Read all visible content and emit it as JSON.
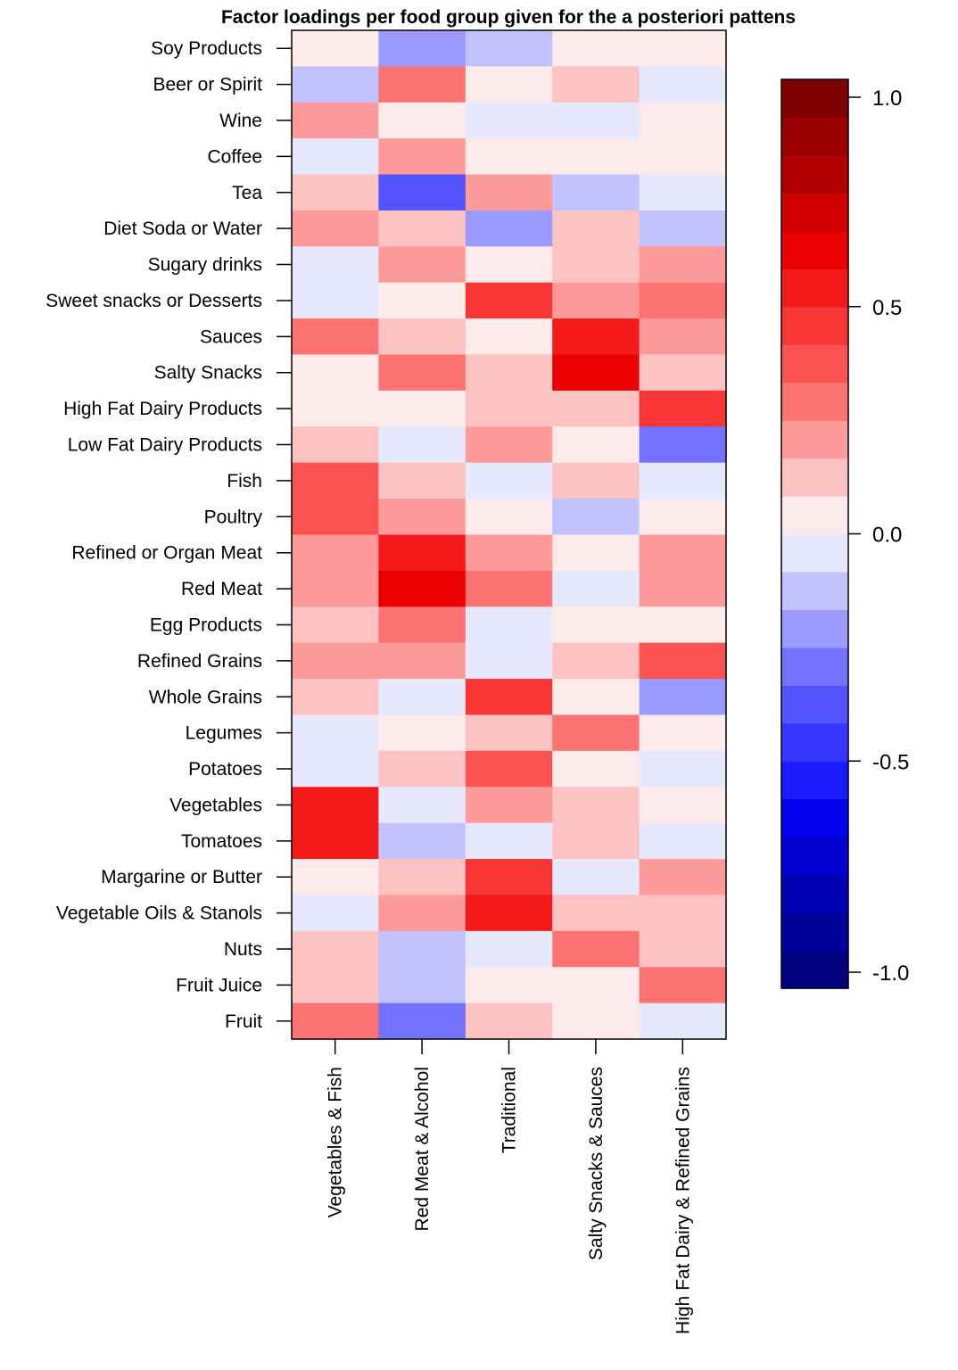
{
  "chart_data": {
    "type": "heatmap",
    "title": "Factor loadings per food group given for the a posteriori pattens",
    "rows": [
      "Soy Products",
      "Beer or Spirit",
      "Wine",
      "Coffee",
      "Tea",
      "Diet Soda or Water",
      "Sugary drinks",
      "Sweet snacks or Desserts",
      "Sauces",
      "Salty Snacks",
      "High Fat Dairy Products",
      "Low Fat Dairy Products",
      "Fish",
      "Poultry",
      "Refined or Organ Meat",
      "Red Meat",
      "Egg Products",
      "Refined Grains",
      "Whole Grains",
      "Legumes",
      "Potatoes",
      "Vegetables",
      "Tomatoes",
      "Margarine or Butter",
      "Vegetable Oils & Stanols",
      "Nuts",
      "Fruit Juice",
      "Fruit"
    ],
    "columns": [
      "Vegetables & Fish",
      "Red Meat & Alcohol",
      "Traditional",
      "Salty Snacks & Sauces",
      "High Fat Dairy & Refined Grains"
    ],
    "values": [
      [
        0.02,
        -0.2,
        -0.12,
        0.02,
        0.02
      ],
      [
        -0.12,
        0.3,
        0.02,
        0.12,
        -0.03
      ],
      [
        0.2,
        0.02,
        -0.03,
        -0.03,
        0.02
      ],
      [
        -0.03,
        0.2,
        0.02,
        0.02,
        0.02
      ],
      [
        0.12,
        -0.35,
        0.2,
        -0.12,
        -0.03
      ],
      [
        0.2,
        0.12,
        -0.2,
        0.12,
        -0.12
      ],
      [
        -0.03,
        0.2,
        0.02,
        0.12,
        0.2
      ],
      [
        -0.03,
        0.02,
        0.45,
        0.2,
        0.3
      ],
      [
        0.3,
        0.12,
        0.02,
        0.55,
        0.2
      ],
      [
        0.02,
        0.3,
        0.12,
        0.65,
        0.12
      ],
      [
        0.02,
        0.02,
        0.12,
        0.12,
        0.45
      ],
      [
        0.12,
        -0.03,
        0.2,
        0.02,
        -0.3
      ],
      [
        0.38,
        0.12,
        -0.03,
        0.12,
        -0.03
      ],
      [
        0.38,
        0.2,
        0.02,
        -0.12,
        0.02
      ],
      [
        0.2,
        0.55,
        0.2,
        0.02,
        0.2
      ],
      [
        0.2,
        0.65,
        0.3,
        -0.03,
        0.2
      ],
      [
        0.12,
        0.3,
        -0.03,
        0.02,
        0.02
      ],
      [
        0.2,
        0.2,
        -0.03,
        0.12,
        0.38
      ],
      [
        0.12,
        -0.03,
        0.45,
        0.02,
        -0.2
      ],
      [
        -0.03,
        0.02,
        0.12,
        0.3,
        0.02
      ],
      [
        -0.03,
        0.12,
        0.38,
        0.02,
        -0.03
      ],
      [
        0.55,
        -0.03,
        0.2,
        0.12,
        0.02
      ],
      [
        0.55,
        -0.12,
        -0.03,
        0.12,
        -0.03
      ],
      [
        0.02,
        0.12,
        0.45,
        -0.03,
        0.2
      ],
      [
        -0.03,
        0.2,
        0.55,
        0.12,
        0.12
      ],
      [
        0.12,
        -0.12,
        -0.03,
        0.3,
        0.12
      ],
      [
        0.12,
        -0.12,
        0.02,
        0.02,
        0.3
      ],
      [
        0.3,
        -0.3,
        0.12,
        0.02,
        -0.03
      ]
    ],
    "colorbar": {
      "range": [
        -1.0,
        1.0
      ],
      "ticks": [
        1.0,
        0.5,
        0.0,
        -0.5,
        -1.0
      ],
      "tick_labels": [
        "1.0",
        "0.5",
        "0.0",
        "-0.5",
        "-1.0"
      ],
      "colors": [
        "#000080",
        "#00009b",
        "#0000b5",
        "#0000d0",
        "#0000ea",
        "#1a1aff",
        "#3636ff",
        "#5252ff",
        "#7272ff",
        "#9a9aff",
        "#c2c2ff",
        "#e8e8fc",
        "#fdeaea",
        "#fdc2c2",
        "#fd9a9a",
        "#fd7272",
        "#fb5252",
        "#f83636",
        "#f41a1a",
        "#ea0000",
        "#d00000",
        "#b50000",
        "#9b0000",
        "#800000"
      ]
    }
  }
}
